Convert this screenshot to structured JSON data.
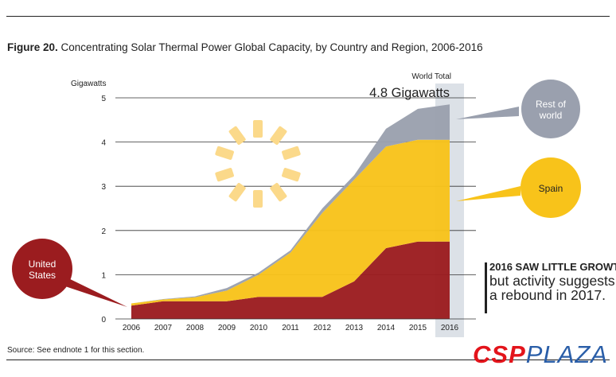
{
  "figure": {
    "label": "Figure 20.",
    "title": "Concentrating Solar Thermal Power Global Capacity, by Country and Region, 2006-2016",
    "source": "Source: See endnote 1 for this section.",
    "callout_line1": "2016 SAW LITTLE GROWTH,",
    "callout_line2": "but activity suggests",
    "callout_line3": "a rebound in 2017.",
    "brand_csp": "CSP",
    "brand_plaza": "PLAZA"
  },
  "chart_data": {
    "type": "area",
    "stacked": true,
    "title": "Concentrating Solar Thermal Power Global Capacity, by Country and Region, 2006-2016",
    "ylabel": "Gigawatts",
    "xlabel": "",
    "ylim": [
      0,
      5
    ],
    "yticks": [
      0,
      1,
      2,
      3,
      4,
      5
    ],
    "x": [
      "2006",
      "2007",
      "2008",
      "2009",
      "2010",
      "2011",
      "2012",
      "2013",
      "2014",
      "2015",
      "2016"
    ],
    "highlight_x": "2016",
    "total_label_top": "World Total",
    "total_label_value": "4.8 Gigawatts",
    "series": [
      {
        "name": "United States",
        "color": "#9b1c1f",
        "values": [
          0.3,
          0.4,
          0.4,
          0.4,
          0.5,
          0.5,
          0.5,
          0.85,
          1.6,
          1.75,
          1.75
        ]
      },
      {
        "name": "Spain",
        "color": "#f8c31a",
        "values": [
          0.05,
          0.04,
          0.09,
          0.24,
          0.5,
          1.0,
          1.9,
          2.3,
          2.3,
          2.3,
          2.3
        ]
      },
      {
        "name": "Rest of world",
        "color": "#9aa0ae",
        "values": [
          0.0,
          0.01,
          0.02,
          0.06,
          0.05,
          0.05,
          0.1,
          0.1,
          0.4,
          0.7,
          0.8
        ]
      }
    ],
    "bubbles": [
      {
        "name": "United States",
        "label_line1": "United",
        "label_line2": "States",
        "color": "#9b1c1f"
      },
      {
        "name": "Spain",
        "label_line1": "Spain",
        "label_line2": "",
        "color": "#f8c31a"
      },
      {
        "name": "Rest of world",
        "label_line1": "Rest of",
        "label_line2": "world",
        "color": "#9aa0ae"
      }
    ],
    "grid": true,
    "legend": "callout bubbles"
  }
}
